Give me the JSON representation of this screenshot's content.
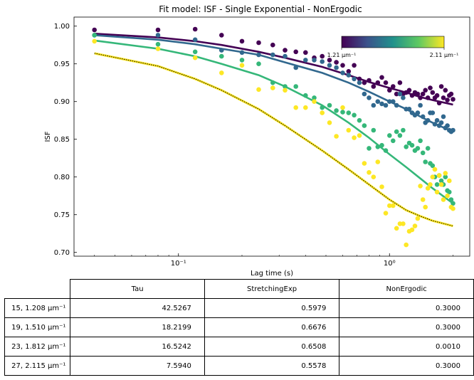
{
  "chart_data": {
    "type": "scatter",
    "title": "Fit model: ISF - Single Exponential - NonErgodic",
    "xlabel": "Lag time (s)",
    "ylabel": "ISF",
    "xscale": "log",
    "xlim": [
      0.032,
      2.4
    ],
    "ylim": [
      0.695,
      1.012
    ],
    "yticks": [
      "0.70",
      "0.75",
      "0.80",
      "0.85",
      "0.90",
      "0.95",
      "1.00"
    ],
    "xtick_labels": [
      {
        "value": 0.1,
        "label": "10⁻¹"
      },
      {
        "value": 1,
        "label": "10⁰"
      }
    ],
    "grid": false,
    "colorbar": {
      "label_min": "1.21 μm⁻¹",
      "label_max": "2.11 μm⁻¹",
      "colormap": "viridis",
      "placement": "top-right"
    },
    "series": [
      {
        "color": "#440154",
        "fit_color": "#440154",
        "points": [
          [
            0.04,
            0.995
          ],
          [
            0.08,
            0.995
          ],
          [
            0.12,
            0.996
          ],
          [
            0.16,
            0.988
          ],
          [
            0.2,
            0.98
          ],
          [
            0.24,
            0.978
          ],
          [
            0.28,
            0.975
          ],
          [
            0.32,
            0.968
          ],
          [
            0.36,
            0.966
          ],
          [
            0.4,
            0.965
          ],
          [
            0.44,
            0.958
          ],
          [
            0.48,
            0.96
          ],
          [
            0.52,
            0.955
          ],
          [
            0.56,
            0.952
          ],
          [
            0.6,
            0.948
          ],
          [
            0.64,
            0.94
          ],
          [
            0.68,
            0.948
          ],
          [
            0.72,
            0.93
          ],
          [
            0.76,
            0.925
          ],
          [
            0.8,
            0.928
          ],
          [
            0.84,
            0.92
          ],
          [
            0.88,
            0.925
          ],
          [
            0.92,
            0.932
          ],
          [
            0.96,
            0.925
          ],
          [
            1.0,
            0.915
          ],
          [
            1.04,
            0.92
          ],
          [
            1.08,
            0.91
          ],
          [
            1.12,
            0.925
          ],
          [
            1.16,
            0.91
          ],
          [
            1.2,
            0.912
          ],
          [
            1.24,
            0.915
          ],
          [
            1.28,
            0.908
          ],
          [
            1.32,
            0.912
          ],
          [
            1.36,
            0.91
          ],
          [
            1.4,
            0.905
          ],
          [
            1.44,
            0.91
          ],
          [
            1.48,
            0.915
          ],
          [
            1.52,
            0.905
          ],
          [
            1.56,
            0.918
          ],
          [
            1.6,
            0.912
          ],
          [
            1.64,
            0.905
          ],
          [
            1.68,
            0.908
          ],
          [
            1.72,
            0.898
          ],
          [
            1.76,
            0.92
          ],
          [
            1.8,
            0.905
          ],
          [
            1.84,
            0.915
          ],
          [
            1.88,
            0.902
          ],
          [
            1.92,
            0.908
          ],
          [
            1.96,
            0.91
          ],
          [
            2.0,
            0.903
          ]
        ],
        "fit": [
          [
            0.04,
            0.99
          ],
          [
            0.08,
            0.985
          ],
          [
            0.12,
            0.98
          ],
          [
            0.16,
            0.975
          ],
          [
            0.24,
            0.966
          ],
          [
            0.32,
            0.958
          ],
          [
            0.48,
            0.946
          ],
          [
            0.64,
            0.935
          ],
          [
            0.8,
            0.926
          ],
          [
            1.0,
            0.918
          ],
          [
            1.2,
            0.912
          ],
          [
            1.4,
            0.906
          ],
          [
            1.6,
            0.902
          ],
          [
            2.0,
            0.896
          ]
        ]
      },
      {
        "color": "#31688e",
        "fit_color": "#31688e",
        "points": [
          [
            0.04,
            0.988
          ],
          [
            0.08,
            0.988
          ],
          [
            0.12,
            0.982
          ],
          [
            0.16,
            0.968
          ],
          [
            0.2,
            0.965
          ],
          [
            0.24,
            0.962
          ],
          [
            0.28,
            0.962
          ],
          [
            0.32,
            0.96
          ],
          [
            0.36,
            0.945
          ],
          [
            0.4,
            0.955
          ],
          [
            0.44,
            0.955
          ],
          [
            0.48,
            0.953
          ],
          [
            0.52,
            0.948
          ],
          [
            0.56,
            0.945
          ],
          [
            0.6,
            0.938
          ],
          [
            0.64,
            0.935
          ],
          [
            0.68,
            0.93
          ],
          [
            0.72,
            0.925
          ],
          [
            0.76,
            0.91
          ],
          [
            0.8,
            0.905
          ],
          [
            0.84,
            0.895
          ],
          [
            0.88,
            0.9
          ],
          [
            0.92,
            0.897
          ],
          [
            0.96,
            0.895
          ],
          [
            1.0,
            0.9
          ],
          [
            1.04,
            0.9
          ],
          [
            1.08,
            0.895
          ],
          [
            1.12,
            0.91
          ],
          [
            1.16,
            0.905
          ],
          [
            1.2,
            0.89
          ],
          [
            1.24,
            0.89
          ],
          [
            1.28,
            0.885
          ],
          [
            1.32,
            0.882
          ],
          [
            1.36,
            0.885
          ],
          [
            1.4,
            0.895
          ],
          [
            1.44,
            0.88
          ],
          [
            1.48,
            0.872
          ],
          [
            1.52,
            0.875
          ],
          [
            1.56,
            0.885
          ],
          [
            1.6,
            0.885
          ],
          [
            1.64,
            0.87
          ],
          [
            1.68,
            0.875
          ],
          [
            1.72,
            0.868
          ],
          [
            1.76,
            0.872
          ],
          [
            1.8,
            0.88
          ],
          [
            1.84,
            0.865
          ],
          [
            1.88,
            0.868
          ],
          [
            1.92,
            0.862
          ],
          [
            1.96,
            0.86
          ],
          [
            2.0,
            0.862
          ]
        ],
        "fit": [
          [
            0.04,
            0.988
          ],
          [
            0.08,
            0.982
          ],
          [
            0.12,
            0.976
          ],
          [
            0.16,
            0.97
          ],
          [
            0.24,
            0.962
          ],
          [
            0.32,
            0.952
          ],
          [
            0.48,
            0.938
          ],
          [
            0.64,
            0.925
          ],
          [
            0.8,
            0.913
          ],
          [
            1.0,
            0.9
          ],
          [
            1.2,
            0.89
          ],
          [
            1.4,
            0.88
          ],
          [
            1.6,
            0.872
          ],
          [
            2.0,
            0.86
          ]
        ]
      },
      {
        "color": "#35b779",
        "fit_color": "#35b779",
        "points": [
          [
            0.04,
            0.988
          ],
          [
            0.08,
            0.976
          ],
          [
            0.12,
            0.966
          ],
          [
            0.16,
            0.96
          ],
          [
            0.2,
            0.955
          ],
          [
            0.24,
            0.95
          ],
          [
            0.28,
            0.925
          ],
          [
            0.32,
            0.92
          ],
          [
            0.36,
            0.92
          ],
          [
            0.4,
            0.908
          ],
          [
            0.44,
            0.905
          ],
          [
            0.48,
            0.892
          ],
          [
            0.52,
            0.895
          ],
          [
            0.56,
            0.888
          ],
          [
            0.6,
            0.886
          ],
          [
            0.64,
            0.885
          ],
          [
            0.68,
            0.882
          ],
          [
            0.72,
            0.875
          ],
          [
            0.76,
            0.868
          ],
          [
            0.8,
            0.838
          ],
          [
            0.84,
            0.862
          ],
          [
            0.88,
            0.84
          ],
          [
            0.92,
            0.842
          ],
          [
            0.96,
            0.835
          ],
          [
            1.0,
            0.855
          ],
          [
            1.04,
            0.848
          ],
          [
            1.08,
            0.86
          ],
          [
            1.12,
            0.855
          ],
          [
            1.16,
            0.862
          ],
          [
            1.2,
            0.84
          ],
          [
            1.24,
            0.845
          ],
          [
            1.28,
            0.842
          ],
          [
            1.32,
            0.835
          ],
          [
            1.36,
            0.838
          ],
          [
            1.4,
            0.848
          ],
          [
            1.44,
            0.832
          ],
          [
            1.48,
            0.82
          ],
          [
            1.52,
            0.838
          ],
          [
            1.56,
            0.818
          ],
          [
            1.6,
            0.815
          ],
          [
            1.64,
            0.8
          ],
          [
            1.68,
            0.79
          ],
          [
            1.72,
            0.802
          ],
          [
            1.76,
            0.795
          ],
          [
            1.8,
            0.79
          ],
          [
            1.84,
            0.8
          ],
          [
            1.88,
            0.782
          ],
          [
            1.92,
            0.78
          ],
          [
            1.96,
            0.77
          ],
          [
            2.0,
            0.765
          ]
        ],
        "fit": [
          [
            0.04,
            0.981
          ],
          [
            0.08,
            0.97
          ],
          [
            0.12,
            0.96
          ],
          [
            0.16,
            0.95
          ],
          [
            0.24,
            0.935
          ],
          [
            0.32,
            0.92
          ],
          [
            0.48,
            0.895
          ],
          [
            0.64,
            0.872
          ],
          [
            0.8,
            0.852
          ],
          [
            1.0,
            0.83
          ],
          [
            1.2,
            0.813
          ],
          [
            1.4,
            0.798
          ],
          [
            1.6,
            0.785
          ],
          [
            2.0,
            0.765
          ]
        ]
      },
      {
        "color": "#fde725",
        "fit_color": "#000000",
        "points": [
          [
            0.04,
            0.98
          ],
          [
            0.08,
            0.97
          ],
          [
            0.12,
            0.958
          ],
          [
            0.16,
            0.938
          ],
          [
            0.2,
            0.948
          ],
          [
            0.24,
            0.916
          ],
          [
            0.28,
            0.918
          ],
          [
            0.32,
            0.915
          ],
          [
            0.36,
            0.892
          ],
          [
            0.4,
            0.892
          ],
          [
            0.44,
            0.9
          ],
          [
            0.48,
            0.885
          ],
          [
            0.52,
            0.872
          ],
          [
            0.56,
            0.854
          ],
          [
            0.6,
            0.892
          ],
          [
            0.64,
            0.862
          ],
          [
            0.68,
            0.852
          ],
          [
            0.72,
            0.855
          ],
          [
            0.76,
            0.818
          ],
          [
            0.8,
            0.806
          ],
          [
            0.84,
            0.8
          ],
          [
            0.88,
            0.82
          ],
          [
            0.92,
            0.787
          ],
          [
            0.96,
            0.752
          ],
          [
            1.0,
            0.762
          ],
          [
            1.04,
            0.762
          ],
          [
            1.08,
            0.732
          ],
          [
            1.12,
            0.738
          ],
          [
            1.16,
            0.738
          ],
          [
            1.2,
            0.71
          ],
          [
            1.24,
            0.728
          ],
          [
            1.28,
            0.73
          ],
          [
            1.32,
            0.735
          ],
          [
            1.36,
            0.745
          ],
          [
            1.4,
            0.788
          ],
          [
            1.44,
            0.77
          ],
          [
            1.48,
            0.76
          ],
          [
            1.52,
            0.785
          ],
          [
            1.56,
            0.79
          ],
          [
            1.6,
            0.8
          ],
          [
            1.64,
            0.81
          ],
          [
            1.68,
            0.78
          ],
          [
            1.72,
            0.802
          ],
          [
            1.76,
            0.79
          ],
          [
            1.8,
            0.77
          ],
          [
            1.84,
            0.805
          ],
          [
            1.88,
            0.775
          ],
          [
            1.92,
            0.795
          ],
          [
            1.96,
            0.76
          ],
          [
            2.0,
            0.758
          ]
        ],
        "fit": [
          [
            0.04,
            0.964
          ],
          [
            0.08,
            0.947
          ],
          [
            0.12,
            0.93
          ],
          [
            0.16,
            0.915
          ],
          [
            0.24,
            0.89
          ],
          [
            0.32,
            0.868
          ],
          [
            0.48,
            0.835
          ],
          [
            0.64,
            0.81
          ],
          [
            0.8,
            0.79
          ],
          [
            1.0,
            0.77
          ],
          [
            1.2,
            0.756
          ],
          [
            1.4,
            0.748
          ],
          [
            1.6,
            0.742
          ],
          [
            2.0,
            0.735
          ]
        ]
      }
    ]
  },
  "table": {
    "headers": [
      "Tau",
      "StretchingExp",
      "NonErgodic"
    ],
    "rows": [
      {
        "label": "15, 1.208 μm⁻¹",
        "tau": "42.5267",
        "stretching": "0.5979",
        "nonergodic": "0.3000"
      },
      {
        "label": "19, 1.510 μm⁻¹",
        "tau": "18.2199",
        "stretching": "0.6676",
        "nonergodic": "0.3000"
      },
      {
        "label": "23, 1.812 μm⁻¹",
        "tau": "16.5242",
        "stretching": "0.6508",
        "nonergodic": "0.0010"
      },
      {
        "label": "27, 2.115 μm⁻¹",
        "tau": "7.5940",
        "stretching": "0.5578",
        "nonergodic": "0.3000"
      }
    ]
  }
}
